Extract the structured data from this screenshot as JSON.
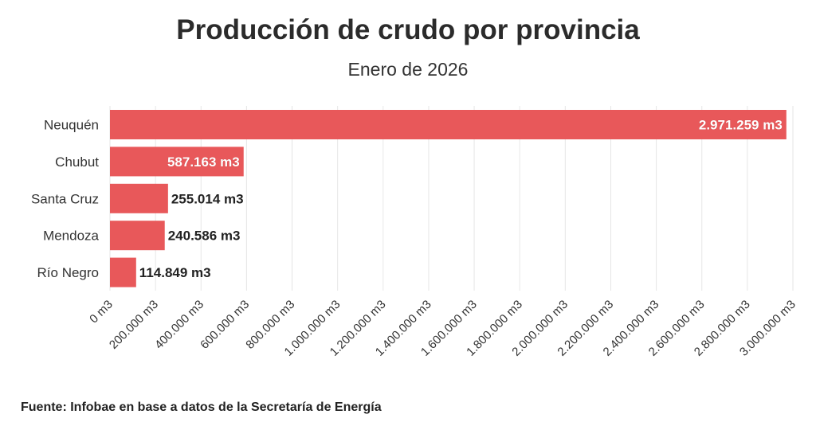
{
  "title": "Producción de crudo por provincia",
  "subtitle": "Enero de 2026",
  "source": "Fuente: Infobae en base a datos de la Secretaría de Energía",
  "colors": {
    "bar": "#e8585a",
    "grid": "#e6e6e6",
    "label_inside": "#ffffff",
    "label_outside": "#222222"
  },
  "chart_data": {
    "type": "bar",
    "orientation": "horizontal",
    "title": "Producción de crudo por provincia",
    "subtitle": "Enero de 2026",
    "categories": [
      "Neuquén",
      "Chubut",
      "Santa Cruz",
      "Mendoza",
      "Río Negro"
    ],
    "values": [
      2971259,
      587163,
      255014,
      240586,
      114849
    ],
    "value_labels": [
      "2.971.259 m3",
      "587.163 m3",
      "255.014 m3",
      "240.586 m3",
      "114.849 m3"
    ],
    "xlim": [
      0,
      3000000
    ],
    "xticks": [
      0,
      200000,
      400000,
      600000,
      800000,
      1000000,
      1200000,
      1400000,
      1600000,
      1800000,
      2000000,
      2200000,
      2400000,
      2600000,
      2800000,
      3000000
    ],
    "xtick_labels": [
      "0 m3",
      "200.000 m3",
      "400.000 m3",
      "600.000 m3",
      "800.000 m3",
      "1.000.000 m3",
      "1.200.000 m3",
      "1.400.000 m3",
      "1.600.000 m3",
      "1.800.000 m3",
      "2.000.000 m3",
      "2.200.000 m3",
      "2.400.000 m3",
      "2.600.000 m3",
      "2.800.000 m3",
      "3.000.000 m3"
    ],
    "grid": true,
    "xlabel": "",
    "ylabel": ""
  }
}
